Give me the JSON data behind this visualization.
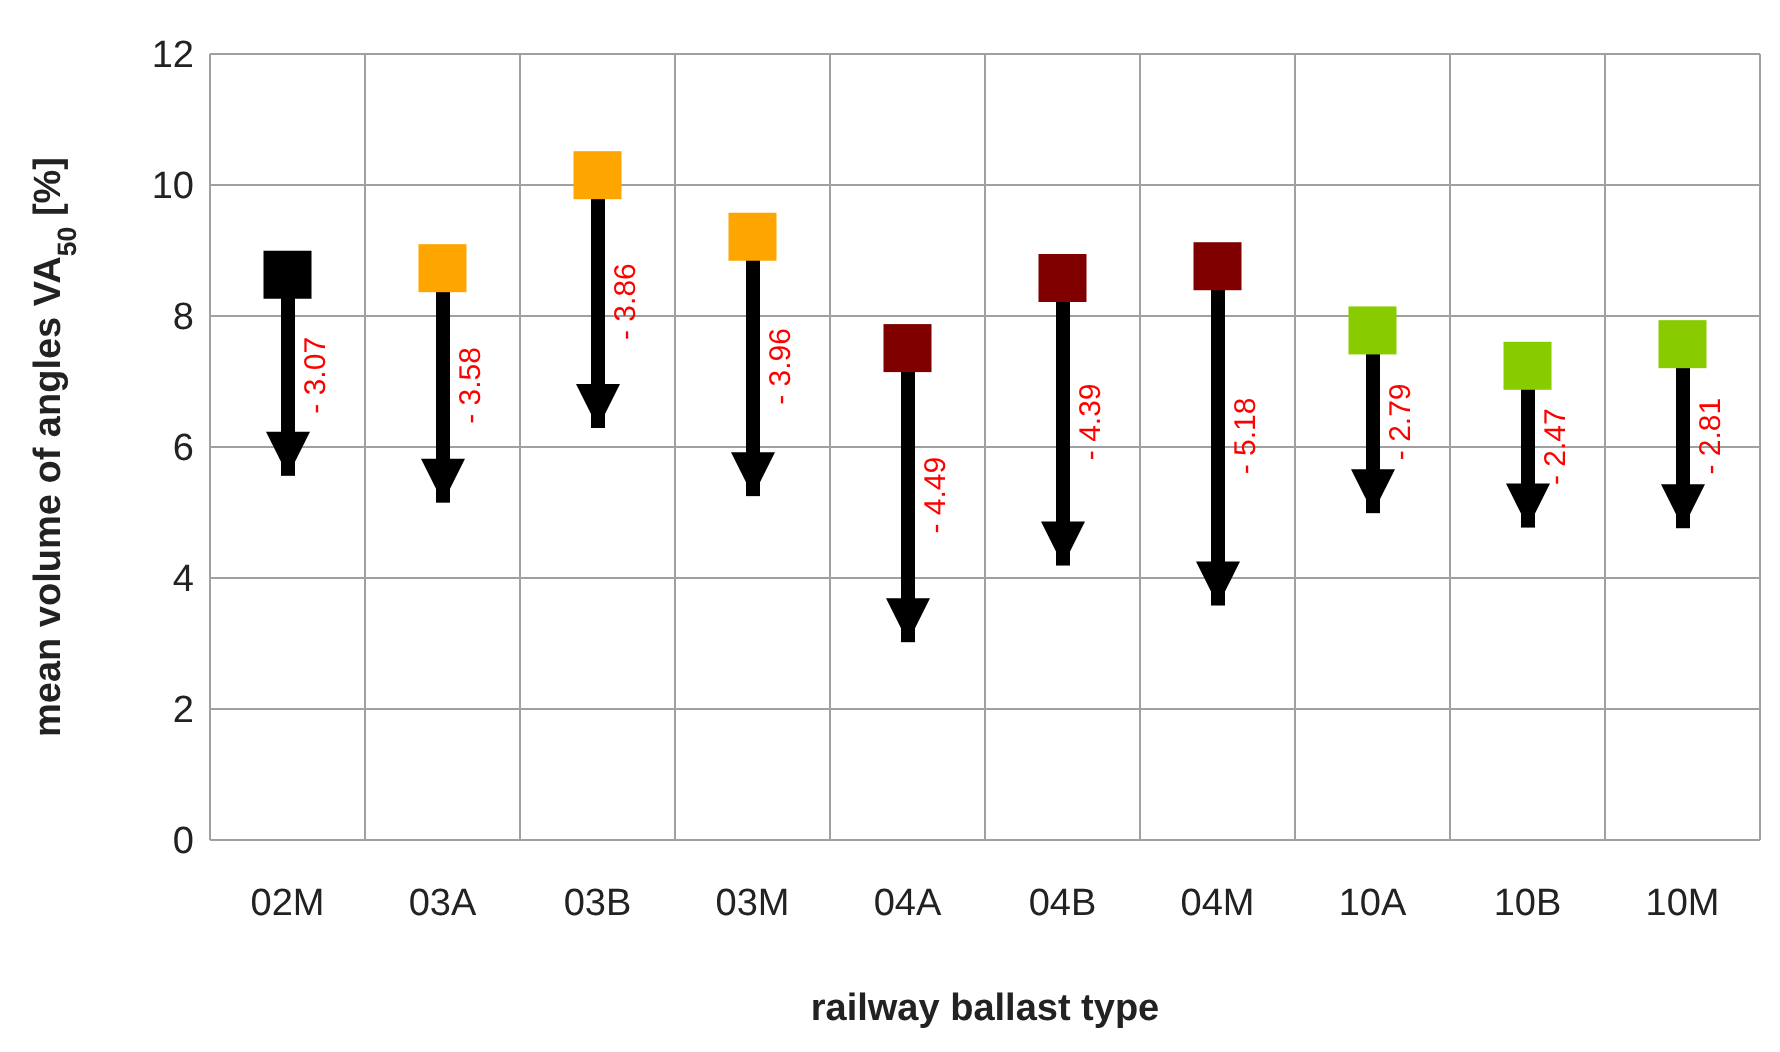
{
  "chart_data": {
    "type": "scatter",
    "xlabel": "railway ballast type",
    "ylabel": "mean volume of angles VA$_{50}$ [%]",
    "categories": [
      "02M",
      "03A",
      "03B",
      "03M",
      "04A",
      "04B",
      "04M",
      "10A",
      "10B",
      "10M"
    ],
    "series": [
      {
        "type": "bar",
        "color": "#000000",
        "base": [
          8.63,
          8.73,
          10.15,
          9.21,
          7.51,
          8.58,
          8.76,
          7.78,
          7.24,
          7.57
        ],
        "values": [
          -3.07,
          -3.58,
          -3.86,
          -3.96,
          -4.49,
          -4.39,
          -5.18,
          -2.79,
          -2.47,
          -2.81
        ],
        "value_labels": [
          "- 3.07",
          "- 3.58",
          "- 3.86",
          "- 3.96",
          "- 4.49",
          "- 4.39",
          "- 5.18",
          "- 2.79",
          "- 2.47",
          "- 2.81"
        ]
      },
      {
        "marker": "square",
        "colors": [
          "#000000",
          "#ffa500",
          "#ffa500",
          "#ffa500",
          "#800000",
          "#800000",
          "#800000",
          "#88cc00",
          "#88cc00",
          "#88cc00"
        ],
        "values": [
          8.63,
          8.73,
          10.15,
          9.21,
          7.51,
          8.58,
          8.76,
          7.78,
          7.24,
          7.57
        ]
      }
    ],
    "ylim": [
      0,
      12
    ],
    "yticks": [
      0,
      2,
      4,
      6,
      8,
      10,
      12
    ],
    "grid": true
  }
}
